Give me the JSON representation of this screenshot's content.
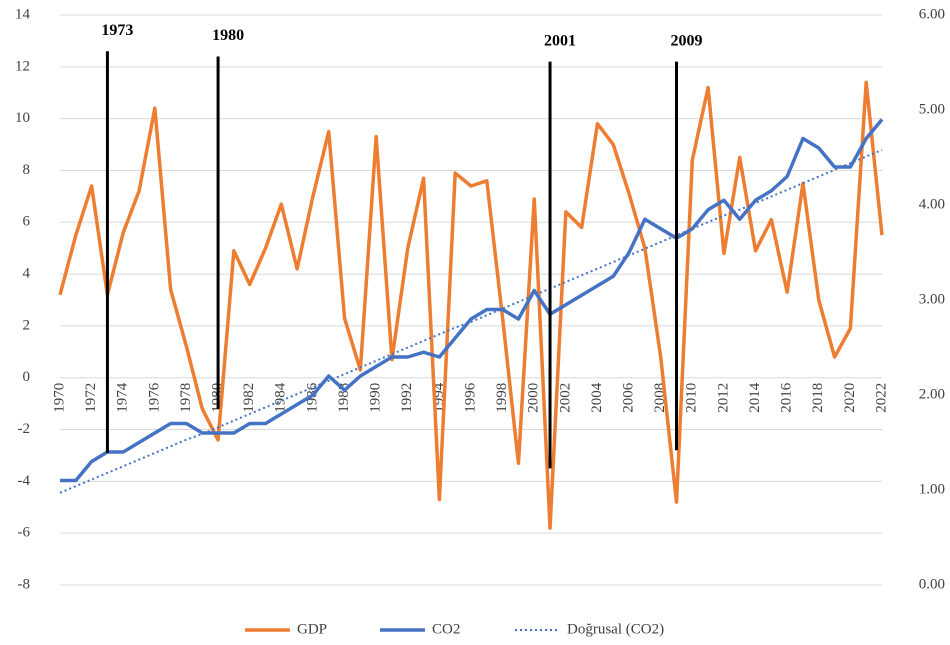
{
  "chart_data": {
    "type": "line",
    "x": [
      1970,
      1971,
      1972,
      1973,
      1974,
      1975,
      1976,
      1977,
      1978,
      1979,
      1980,
      1981,
      1982,
      1983,
      1984,
      1985,
      1986,
      1987,
      1988,
      1989,
      1990,
      1991,
      1992,
      1993,
      1994,
      1995,
      1996,
      1997,
      1998,
      1999,
      2000,
      2001,
      2002,
      2003,
      2004,
      2005,
      2006,
      2007,
      2008,
      2009,
      2010,
      2011,
      2012,
      2013,
      2014,
      2015,
      2016,
      2017,
      2018,
      2019,
      2020,
      2021,
      2022
    ],
    "series": [
      {
        "name": "GDP",
        "color": "#ed7d31",
        "axis": "y",
        "style": "solid",
        "values": [
          3.2,
          5.5,
          7.4,
          3.2,
          5.6,
          7.2,
          10.4,
          3.4,
          1.2,
          -1.2,
          -2.4,
          4.9,
          3.6,
          5.0,
          6.7,
          4.2,
          7.0,
          9.5,
          2.3,
          0.3,
          9.3,
          0.7,
          5.0,
          7.7,
          -4.7,
          7.9,
          7.4,
          7.6,
          2.3,
          -3.3,
          6.9,
          -5.8,
          6.4,
          5.8,
          9.8,
          9.0,
          7.1,
          5.0,
          0.8,
          -4.8,
          8.4,
          11.2,
          4.8,
          8.5,
          4.9,
          6.1,
          3.3,
          7.5,
          3.0,
          0.8,
          1.9,
          11.4,
          5.5
        ]
      },
      {
        "name": "CO2",
        "color": "#4472c4",
        "axis": "y2",
        "style": "solid",
        "values": [
          1.1,
          1.1,
          1.3,
          1.4,
          1.4,
          1.5,
          1.6,
          1.7,
          1.7,
          1.6,
          1.6,
          1.6,
          1.7,
          1.7,
          1.8,
          1.9,
          2.0,
          2.2,
          2.05,
          2.2,
          2.3,
          2.4,
          2.4,
          2.45,
          2.4,
          2.6,
          2.8,
          2.9,
          2.9,
          2.8,
          3.1,
          2.85,
          2.95,
          3.05,
          3.15,
          3.25,
          3.5,
          3.85,
          3.75,
          3.65,
          3.75,
          3.95,
          4.05,
          3.85,
          4.05,
          4.15,
          4.3,
          4.7,
          4.6,
          4.4,
          4.4,
          4.7,
          4.9
        ]
      },
      {
        "name": "Doğrusal (CO2)",
        "color": "#4472c4",
        "axis": "y2",
        "style": "dotted",
        "values": [
          0.97,
          1.04,
          1.11,
          1.18,
          1.25,
          1.32,
          1.39,
          1.46,
          1.53,
          1.59,
          1.66,
          1.73,
          1.8,
          1.87,
          1.94,
          2.01,
          2.08,
          2.15,
          2.22,
          2.29,
          2.36,
          2.43,
          2.5,
          2.57,
          2.64,
          2.71,
          2.77,
          2.84,
          2.91,
          2.98,
          3.05,
          3.12,
          3.19,
          3.26,
          3.33,
          3.4,
          3.47,
          3.54,
          3.61,
          3.68,
          3.75,
          3.82,
          3.89,
          3.95,
          4.02,
          4.09,
          4.16,
          4.23,
          4.3,
          4.37,
          4.44,
          4.51,
          4.58
        ]
      }
    ],
    "xlim": [
      1970,
      2022
    ],
    "xticks": [
      1970,
      1972,
      1974,
      1976,
      1978,
      1980,
      1982,
      1984,
      1986,
      1988,
      1990,
      1992,
      1994,
      1996,
      1998,
      2000,
      2002,
      2004,
      2006,
      2008,
      2010,
      2012,
      2014,
      2016,
      2018,
      2020,
      2022
    ],
    "ylim": [
      -8,
      14
    ],
    "yticks": [
      -8,
      -6,
      -4,
      -2,
      0,
      2,
      4,
      6,
      8,
      10,
      12,
      14
    ],
    "y2lim": [
      0,
      6
    ],
    "y2ticks": [
      {
        "value": 0,
        "label": "0.00"
      },
      {
        "value": 1,
        "label": "1.00"
      },
      {
        "value": 2,
        "label": "2.00"
      },
      {
        "value": 3,
        "label": "3.00"
      },
      {
        "value": 4,
        "label": "4.00"
      },
      {
        "value": 5,
        "label": "5.00"
      },
      {
        "value": 6,
        "label": "6.00"
      }
    ],
    "grid": true,
    "legend": "bottom",
    "annotations": [
      {
        "label": "1973",
        "x": 1973,
        "y": [
          12.6,
          -2.9
        ]
      },
      {
        "label": "1980",
        "x": 1980,
        "y": [
          12.4,
          -1.2
        ]
      },
      {
        "label": "2001",
        "x": 2001,
        "y": [
          12.2,
          -3.5
        ]
      },
      {
        "label": "2009",
        "x": 2009,
        "y": [
          12.2,
          -2.8
        ]
      }
    ]
  }
}
